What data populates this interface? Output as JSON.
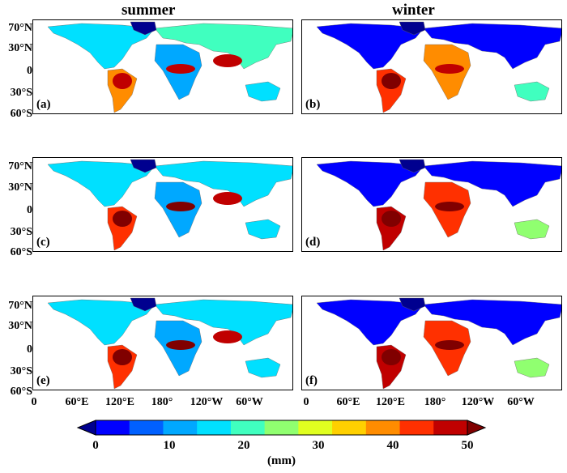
{
  "columns": {
    "left": "summer",
    "right": "winter"
  },
  "panels": [
    {
      "label": "(a)",
      "season": "summer"
    },
    {
      "label": "(b)",
      "season": "winter"
    },
    {
      "label": "(c)",
      "season": "summer"
    },
    {
      "label": "(d)",
      "season": "winter"
    },
    {
      "label": "(e)",
      "season": "summer"
    },
    {
      "label": "(f)",
      "season": "winter"
    }
  ],
  "lat_labels": [
    "70°N",
    "30°N",
    "0",
    "30°S",
    "60°S"
  ],
  "lon_labels": [
    "0",
    "60°E",
    "120°E",
    "180°",
    "120°W",
    "60°W"
  ],
  "colorbar": {
    "ticks": [
      "0",
      "10",
      "20",
      "30",
      "40",
      "50"
    ],
    "unit": "(mm)",
    "colors": [
      "#00008f",
      "#0000ff",
      "#0060ff",
      "#00a8ff",
      "#00e0ff",
      "#40ffbf",
      "#90ff70",
      "#e0ff20",
      "#ffd000",
      "#ff8c00",
      "#ff3000",
      "#c00000",
      "#800000"
    ]
  }
}
